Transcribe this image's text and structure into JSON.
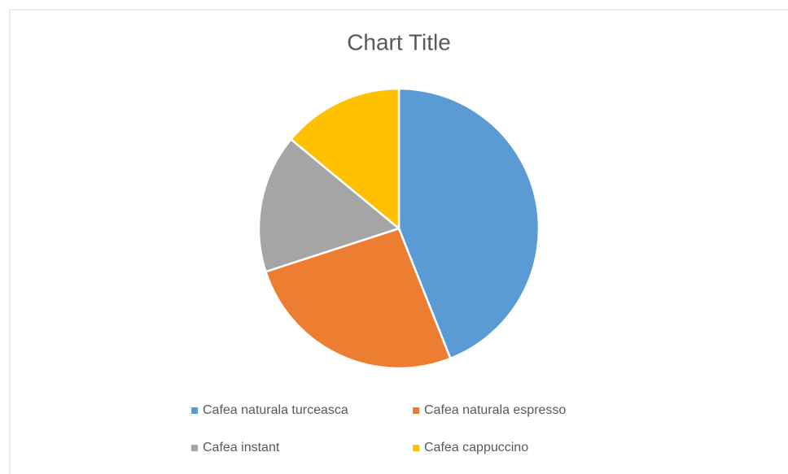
{
  "chart_data": {
    "type": "pie",
    "title": "Chart Title",
    "categories": [
      "Cafea naturala turceasca",
      "Cafea naturala espresso",
      "Cafea instant",
      "Cafea cappuccino"
    ],
    "values": [
      44,
      26,
      16,
      14
    ],
    "colors": [
      "#5b9bd5",
      "#ed7d31",
      "#a5a5a5",
      "#ffc000"
    ],
    "legend": "bottom"
  }
}
